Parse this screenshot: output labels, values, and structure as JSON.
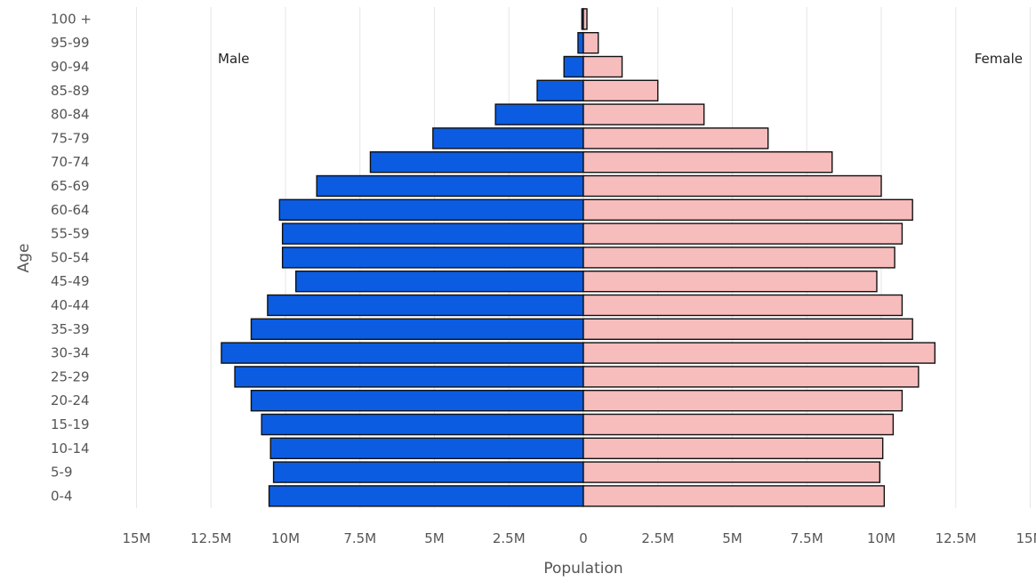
{
  "chart_data": {
    "type": "bar",
    "orientation": "horizontal",
    "layout": "population-pyramid",
    "categories": [
      "0-4",
      "5-9",
      "10-14",
      "15-19",
      "20-24",
      "25-29",
      "30-34",
      "35-39",
      "40-44",
      "45-49",
      "50-54",
      "55-59",
      "60-64",
      "65-69",
      "70-74",
      "75-79",
      "80-84",
      "85-89",
      "90-94",
      "95-99",
      "100 +"
    ],
    "series": [
      {
        "name": "Male",
        "color": "#0b5ce0",
        "side": "left",
        "values": [
          10.55,
          10.4,
          10.5,
          10.8,
          11.15,
          11.7,
          12.15,
          11.15,
          10.6,
          9.65,
          10.1,
          10.1,
          10.2,
          8.95,
          7.15,
          5.05,
          2.95,
          1.55,
          0.65,
          0.18,
          0.05
        ]
      },
      {
        "name": "Female",
        "color": "#f7bcbc",
        "side": "right",
        "values": [
          10.1,
          9.95,
          10.05,
          10.4,
          10.7,
          11.25,
          11.8,
          11.05,
          10.7,
          9.85,
          10.45,
          10.7,
          11.05,
          10.0,
          8.35,
          6.2,
          4.05,
          2.5,
          1.3,
          0.5,
          0.12
        ]
      }
    ],
    "xlabel": "Population",
    "ylabel": "Age",
    "xlim": [
      -15,
      15
    ],
    "x_unit": "M",
    "x_ticks": [
      {
        "value": -15,
        "label": "15M"
      },
      {
        "value": -12.5,
        "label": "12.5M"
      },
      {
        "value": -10,
        "label": "10M"
      },
      {
        "value": -7.5,
        "label": "7.5M"
      },
      {
        "value": -5,
        "label": "5M"
      },
      {
        "value": -2.5,
        "label": "2.5M"
      },
      {
        "value": 0,
        "label": "0"
      },
      {
        "value": 2.5,
        "label": "2.5M"
      },
      {
        "value": 5,
        "label": "5M"
      },
      {
        "value": 7.5,
        "label": "7.5M"
      },
      {
        "value": 10,
        "label": "10M"
      },
      {
        "value": 12.5,
        "label": "12.5M"
      },
      {
        "value": 15,
        "label": "15M"
      }
    ],
    "grid": true,
    "legend": "none",
    "side_labels": {
      "left": "Male",
      "right": "Female"
    }
  }
}
